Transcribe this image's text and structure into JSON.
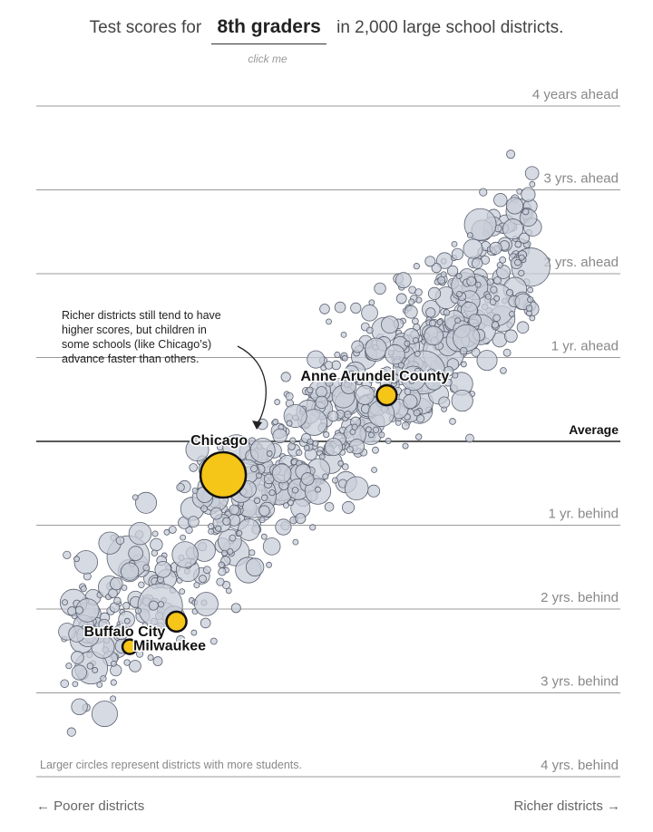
{
  "header": {
    "prefix": "Test scores for",
    "grade_label": "8th graders",
    "suffix": "in 2,000 large school districts.",
    "hint": "click me"
  },
  "footer": {
    "left": "← Poorer districts",
    "right": "Richer districts →",
    "size_note": "Larger circles represent districts with more students."
  },
  "colors": {
    "bubble_fill": "#c8cdd8",
    "bubble_stroke": "#5a6070",
    "highlight_fill": "#f5c518",
    "gridline": "#999999",
    "average_line": "#222222"
  },
  "annotation": {
    "lines": [
      "Richer districts still tend to have",
      "higher scores, but children in",
      "some schools (like Chicago’s)",
      "advance faster than others."
    ]
  },
  "chart_data": {
    "type": "scatter",
    "title": "Test scores for 8th graders in 2,000 large school districts.",
    "xlabel_left": "← Poorer districts",
    "xlabel_right": "Richer districts →",
    "ylim": [
      -4,
      4
    ],
    "y_ticks": [
      {
        "value": 4,
        "label": "4 years ahead"
      },
      {
        "value": 3,
        "label": "3 yrs. ahead"
      },
      {
        "value": 2,
        "label": "2 yrs. ahead"
      },
      {
        "value": 1,
        "label": "1 yr. ahead"
      },
      {
        "value": 0,
        "label": "Average"
      },
      {
        "value": -1,
        "label": "1 yr. behind"
      },
      {
        "value": -2,
        "label": "2 yrs. behind"
      },
      {
        "value": -3,
        "label": "3 yrs. behind"
      },
      {
        "value": -4,
        "label": "4 yrs. behind"
      }
    ],
    "x_axis": "district income (poorer to richer)",
    "grid": true,
    "highlighted": [
      {
        "name": "Anne Arundel County",
        "x": 0.6,
        "y": 0.55,
        "size": 11
      },
      {
        "name": "Chicago",
        "x": 0.32,
        "y": -0.4,
        "size": 25
      },
      {
        "name": "Buffalo City",
        "x": 0.24,
        "y": -2.15,
        "size": 11
      },
      {
        "name": "Milwaukee",
        "x": 0.16,
        "y": -2.45,
        "size": 8
      }
    ],
    "point_count": 2000
  }
}
